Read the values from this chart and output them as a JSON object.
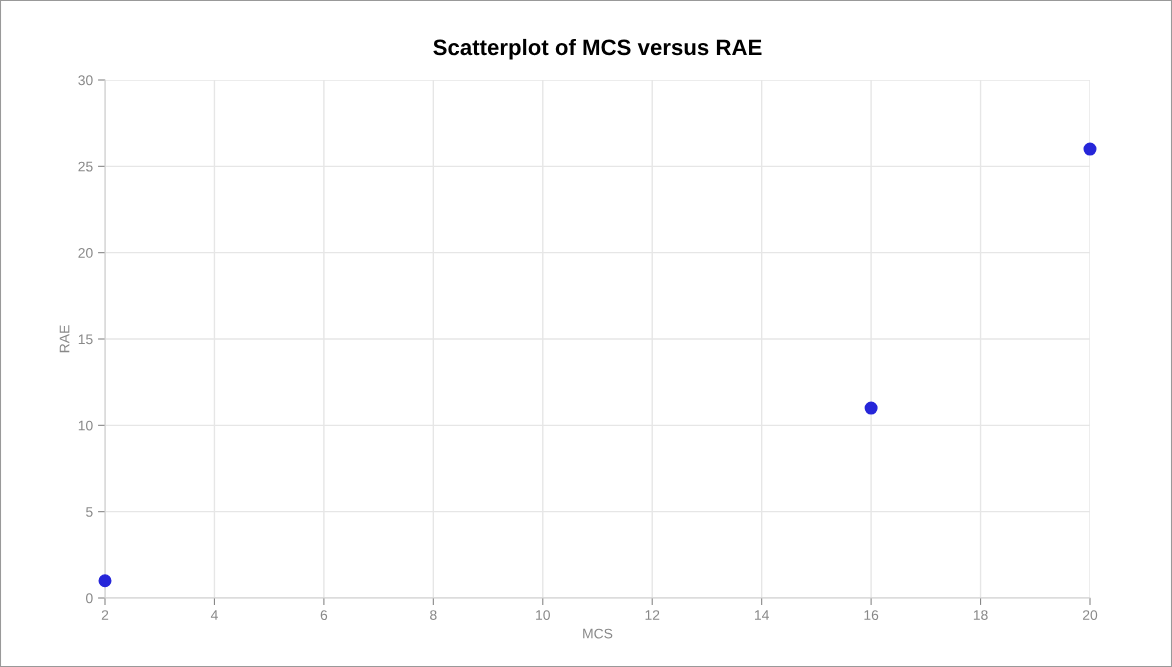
{
  "chart_data": {
    "type": "scatter",
    "title": "Scatterplot of MCS versus RAE",
    "xlabel": "MCS",
    "ylabel": "RAE",
    "x": [
      2,
      16,
      20
    ],
    "series": [
      {
        "color": "#2626d9",
        "values": [
          1,
          11,
          26
        ]
      }
    ],
    "xlim": [
      2,
      20
    ],
    "xticks": [
      2,
      4,
      6,
      8,
      10,
      12,
      14,
      16,
      18,
      20
    ],
    "ylim": [
      0,
      30
    ],
    "yticks": [
      0,
      5,
      10,
      15,
      20,
      25,
      30
    ],
    "grid": true,
    "marker": "circle"
  }
}
